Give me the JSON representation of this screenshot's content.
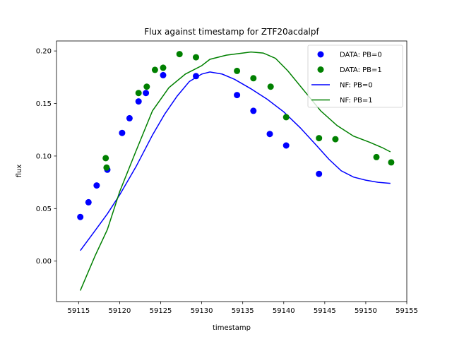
{
  "chart_data": {
    "type": "scatter",
    "title": "Flux against timestamp for ZTF20acdalpf",
    "xlabel": "timestamp",
    "ylabel": "flux",
    "xlim": [
      59112.3,
      59155
    ],
    "ylim": [
      -0.0385,
      0.2095
    ],
    "xticks": [
      59115,
      59120,
      59125,
      59130,
      59135,
      59140,
      59145,
      59150,
      59155
    ],
    "yticks": [
      0.0,
      0.05,
      0.1,
      0.15,
      0.2
    ],
    "grid": false,
    "legend_position": "top-right",
    "series": [
      {
        "name": "DATA: PB=0",
        "kind": "points",
        "color": "#0000ff",
        "x": [
          59115.2,
          59116.2,
          59117.2,
          59118.5,
          59120.3,
          59121.2,
          59122.3,
          59123.2,
          59125.3,
          59129.3,
          59134.3,
          59136.3,
          59138.3,
          59140.3,
          59144.3
        ],
        "y": [
          0.042,
          0.056,
          0.072,
          0.087,
          0.122,
          0.136,
          0.152,
          0.16,
          0.177,
          0.176,
          0.158,
          0.143,
          0.121,
          0.11,
          0.083
        ]
      },
      {
        "name": "DATA: PB=1",
        "kind": "points",
        "color": "#008000",
        "x": [
          59118.3,
          59118.4,
          59122.3,
          59123.3,
          59124.3,
          59125.3,
          59127.3,
          59129.3,
          59134.3,
          59136.3,
          59138.4,
          59140.3,
          59144.3,
          59146.3,
          59151.3,
          59153.1
        ],
        "y": [
          0.098,
          0.089,
          0.16,
          0.166,
          0.182,
          0.184,
          0.197,
          0.194,
          0.181,
          0.174,
          0.166,
          0.137,
          0.117,
          0.116,
          0.099,
          0.094
        ]
      },
      {
        "name": "NF: PB=0",
        "kind": "line",
        "color": "#0000ff",
        "x": [
          59115.2,
          59117,
          59118.5,
          59120,
          59122,
          59124,
          59125.5,
          59127,
          59128.5,
          59130,
          59131,
          59132.5,
          59134,
          59136,
          59138,
          59140,
          59142,
          59144,
          59145.5,
          59147,
          59148.5,
          59150,
          59151.5,
          59153
        ],
        "y": [
          0.01,
          0.029,
          0.045,
          0.063,
          0.09,
          0.12,
          0.14,
          0.157,
          0.171,
          0.178,
          0.18,
          0.178,
          0.173,
          0.164,
          0.154,
          0.142,
          0.127,
          0.11,
          0.097,
          0.086,
          0.08,
          0.077,
          0.075,
          0.074
        ]
      },
      {
        "name": "NF: PB=1",
        "kind": "line",
        "color": "#008000",
        "x": [
          59115.2,
          59117,
          59118.5,
          59120,
          59122,
          59124,
          59126,
          59128,
          59130,
          59131,
          59133,
          59135,
          59136,
          59137.5,
          59139,
          59140.5,
          59142.5,
          59144.5,
          59146.5,
          59148.5,
          59150.5,
          59152,
          59153
        ],
        "y": [
          -0.028,
          0.005,
          0.03,
          0.066,
          0.105,
          0.143,
          0.165,
          0.178,
          0.186,
          0.192,
          0.196,
          0.198,
          0.199,
          0.198,
          0.193,
          0.181,
          0.162,
          0.143,
          0.129,
          0.119,
          0.113,
          0.108,
          0.104
        ]
      }
    ]
  }
}
